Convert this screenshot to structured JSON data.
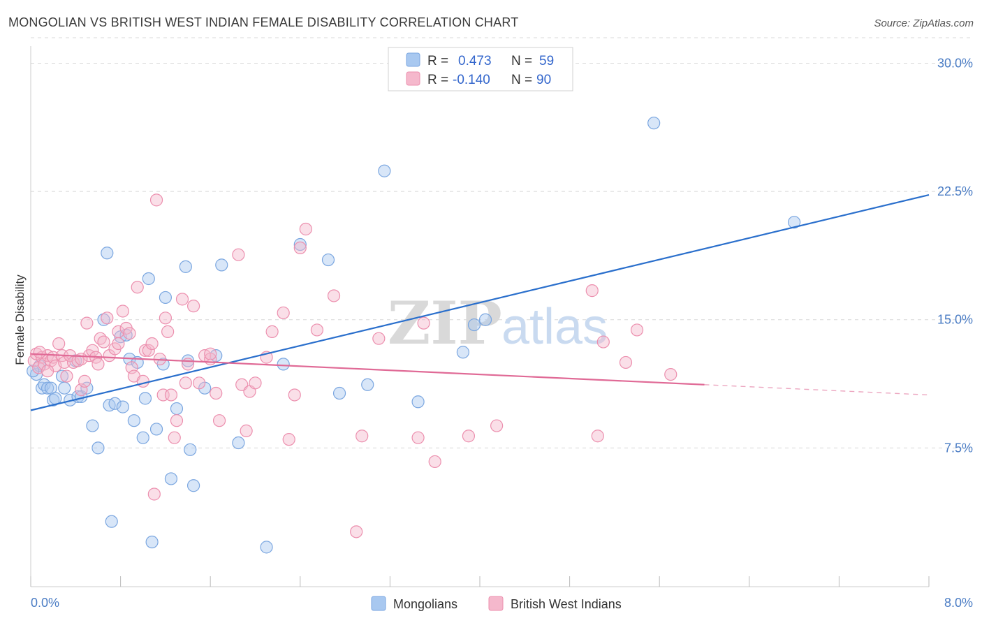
{
  "title": "MONGOLIAN VS BRITISH WEST INDIAN FEMALE DISABILITY CORRELATION CHART",
  "source": "Source: ZipAtlas.com",
  "watermark": {
    "zip": "ZIP",
    "atlas": "atlas"
  },
  "colors": {
    "mongolians_fill": "#a8c8f0",
    "mongolians_stroke": "#7aa6e0",
    "mongolians_line": "#2a6fcc",
    "bwi_fill": "#f5b8cc",
    "bwi_stroke": "#ec8fae",
    "bwi_line": "#e06a96",
    "accent_text": "#3366cc",
    "grid": "#d8d8d8"
  },
  "legend": {
    "r_label": "R =",
    "n_label": "N =",
    "rows": [
      {
        "r": "0.473",
        "n": "59"
      },
      {
        "r": "-0.140",
        "n": "90"
      }
    ]
  },
  "chart_data": {
    "type": "scatter",
    "title": "MONGOLIAN VS BRITISH WEST INDIAN FEMALE DISABILITY CORRELATION CHART",
    "xlabel": "",
    "ylabel": "Female Disability",
    "xlim": [
      0.0,
      8.0
    ],
    "ylim": [
      0.0,
      31.0
    ],
    "x_tick_labels": [
      "0.0%",
      "8.0%"
    ],
    "y_ticks": [
      7.5,
      15.0,
      22.5,
      30.0
    ],
    "y_tick_labels": [
      "7.5%",
      "15.0%",
      "22.5%",
      "30.0%"
    ],
    "grid": "horizontal dashed",
    "legend_position": "top-center",
    "series": [
      {
        "name": "Mongolians",
        "r": 0.473,
        "n": 59,
        "trend": {
          "x": [
            0.0,
            8.0
          ],
          "y": [
            9.7,
            22.3
          ],
          "style": "solid"
        },
        "points": [
          [
            0.05,
            11.8
          ],
          [
            0.08,
            12.3
          ],
          [
            0.1,
            11.0
          ],
          [
            0.12,
            11.2
          ],
          [
            0.15,
            11.0
          ],
          [
            0.18,
            11.0
          ],
          [
            0.2,
            10.3
          ],
          [
            0.22,
            10.4
          ],
          [
            0.28,
            11.7
          ],
          [
            0.3,
            11.0
          ],
          [
            0.35,
            10.3
          ],
          [
            0.4,
            12.6
          ],
          [
            0.42,
            10.5
          ],
          [
            0.45,
            10.5
          ],
          [
            0.5,
            11.0
          ],
          [
            0.55,
            8.8
          ],
          [
            0.6,
            7.5
          ],
          [
            0.65,
            15.0
          ],
          [
            0.68,
            18.9
          ],
          [
            0.7,
            10.0
          ],
          [
            0.72,
            3.2
          ],
          [
            0.75,
            10.1
          ],
          [
            0.8,
            14.0
          ],
          [
            0.82,
            9.9
          ],
          [
            0.85,
            14.1
          ],
          [
            0.88,
            12.7
          ],
          [
            0.92,
            9.1
          ],
          [
            0.95,
            12.5
          ],
          [
            1.0,
            8.1
          ],
          [
            1.02,
            10.4
          ],
          [
            1.05,
            17.4
          ],
          [
            1.08,
            2.0
          ],
          [
            1.12,
            8.6
          ],
          [
            1.18,
            12.4
          ],
          [
            1.2,
            16.3
          ],
          [
            1.25,
            5.7
          ],
          [
            1.3,
            9.8
          ],
          [
            1.38,
            18.1
          ],
          [
            1.4,
            12.6
          ],
          [
            1.42,
            7.4
          ],
          [
            1.45,
            5.3
          ],
          [
            1.55,
            11.0
          ],
          [
            1.65,
            12.9
          ],
          [
            1.7,
            18.2
          ],
          [
            1.85,
            7.8
          ],
          [
            2.1,
            1.7
          ],
          [
            2.25,
            12.4
          ],
          [
            2.4,
            19.4
          ],
          [
            2.65,
            18.5
          ],
          [
            2.75,
            10.7
          ],
          [
            3.0,
            11.2
          ],
          [
            3.15,
            23.7
          ],
          [
            3.45,
            10.2
          ],
          [
            3.85,
            13.1
          ],
          [
            3.95,
            14.7
          ],
          [
            4.05,
            15.0
          ],
          [
            5.55,
            26.5
          ],
          [
            6.8,
            20.7
          ],
          [
            0.02,
            12.0
          ]
        ]
      },
      {
        "name": "British West Indians",
        "r": -0.14,
        "n": 90,
        "trend": {
          "x": [
            0.0,
            6.0
          ],
          "y": [
            13.0,
            11.2
          ],
          "style": "solid",
          "extension": {
            "x": [
              6.0,
              8.0
            ],
            "y": [
              11.2,
              10.6
            ],
            "style": "dashed"
          }
        },
        "points": [
          [
            0.03,
            12.6
          ],
          [
            0.05,
            13.0
          ],
          [
            0.07,
            12.2
          ],
          [
            0.1,
            12.8
          ],
          [
            0.12,
            12.4
          ],
          [
            0.15,
            12.9
          ],
          [
            0.18,
            12.6
          ],
          [
            0.2,
            12.8
          ],
          [
            0.22,
            12.3
          ],
          [
            0.25,
            13.6
          ],
          [
            0.28,
            12.9
          ],
          [
            0.3,
            12.5
          ],
          [
            0.32,
            11.7
          ],
          [
            0.35,
            12.9
          ],
          [
            0.38,
            12.5
          ],
          [
            0.42,
            12.6
          ],
          [
            0.45,
            10.9
          ],
          [
            0.48,
            11.4
          ],
          [
            0.5,
            14.8
          ],
          [
            0.52,
            12.9
          ],
          [
            0.55,
            13.2
          ],
          [
            0.58,
            12.8
          ],
          [
            0.6,
            12.4
          ],
          [
            0.62,
            13.9
          ],
          [
            0.65,
            13.7
          ],
          [
            0.68,
            15.1
          ],
          [
            0.7,
            12.9
          ],
          [
            0.75,
            13.3
          ],
          [
            0.78,
            14.3
          ],
          [
            0.82,
            15.5
          ],
          [
            0.85,
            14.5
          ],
          [
            0.88,
            14.2
          ],
          [
            0.9,
            12.2
          ],
          [
            0.92,
            11.7
          ],
          [
            0.95,
            16.9
          ],
          [
            1.0,
            11.4
          ],
          [
            1.02,
            13.2
          ],
          [
            1.05,
            13.2
          ],
          [
            1.08,
            13.6
          ],
          [
            1.1,
            4.8
          ],
          [
            1.12,
            22.0
          ],
          [
            1.15,
            12.7
          ],
          [
            1.18,
            10.6
          ],
          [
            1.2,
            15.1
          ],
          [
            1.22,
            14.3
          ],
          [
            1.25,
            10.6
          ],
          [
            1.28,
            8.1
          ],
          [
            1.3,
            9.1
          ],
          [
            1.35,
            16.2
          ],
          [
            1.38,
            11.3
          ],
          [
            1.4,
            12.4
          ],
          [
            1.45,
            15.8
          ],
          [
            1.5,
            11.3
          ],
          [
            1.55,
            12.9
          ],
          [
            1.6,
            12.7
          ],
          [
            1.65,
            10.7
          ],
          [
            1.68,
            9.1
          ],
          [
            1.85,
            18.8
          ],
          [
            1.88,
            11.2
          ],
          [
            1.92,
            8.5
          ],
          [
            1.95,
            10.8
          ],
          [
            2.0,
            11.3
          ],
          [
            2.1,
            12.8
          ],
          [
            2.15,
            14.3
          ],
          [
            2.25,
            15.4
          ],
          [
            2.3,
            8.0
          ],
          [
            2.35,
            10.6
          ],
          [
            2.4,
            19.2
          ],
          [
            2.45,
            20.3
          ],
          [
            2.55,
            14.4
          ],
          [
            2.7,
            16.4
          ],
          [
            2.9,
            2.6
          ],
          [
            2.95,
            8.2
          ],
          [
            3.1,
            13.9
          ],
          [
            3.45,
            8.1
          ],
          [
            3.5,
            14.8
          ],
          [
            3.6,
            6.7
          ],
          [
            3.9,
            8.2
          ],
          [
            4.15,
            8.8
          ],
          [
            5.0,
            16.7
          ],
          [
            5.05,
            8.2
          ],
          [
            5.1,
            13.7
          ],
          [
            5.3,
            12.5
          ],
          [
            5.4,
            14.4
          ],
          [
            5.7,
            11.8
          ],
          [
            0.08,
            13.1
          ],
          [
            0.15,
            12.0
          ],
          [
            0.45,
            12.7
          ],
          [
            0.78,
            13.6
          ],
          [
            1.6,
            13.0
          ]
        ]
      }
    ]
  },
  "bottom_legend": [
    {
      "label": "Mongolians"
    },
    {
      "label": "British West Indians"
    }
  ]
}
